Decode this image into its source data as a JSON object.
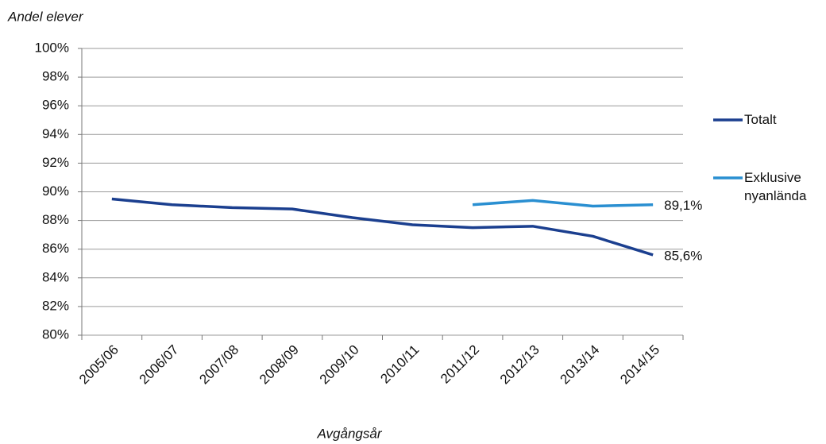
{
  "chart_data": {
    "type": "line",
    "y_axis_label": "Andel elever",
    "x_axis_label": "Avgångsår",
    "categories": [
      "2005/06",
      "2006/07",
      "2007/08",
      "2008/09",
      "2009/10",
      "2010/11",
      "2011/12",
      "2012/13",
      "2013/14",
      "2014/15"
    ],
    "series": [
      {
        "name": "Totalt",
        "color": "#1b3f8f",
        "values": [
          89.5,
          89.1,
          88.9,
          88.8,
          88.2,
          87.7,
          87.5,
          87.6,
          86.9,
          85.6
        ],
        "value_labels": [
          null,
          null,
          null,
          null,
          null,
          null,
          null,
          null,
          null,
          "85,6%"
        ]
      },
      {
        "name": "Exklusive nyanlända",
        "color": "#2a8fd1",
        "values": [
          null,
          null,
          null,
          null,
          null,
          null,
          89.1,
          89.4,
          89.0,
          89.1
        ],
        "value_labels": [
          null,
          null,
          null,
          null,
          null,
          null,
          null,
          null,
          null,
          "89,1%"
        ]
      }
    ],
    "ylim": [
      80,
      100
    ],
    "yticks": [
      {
        "value": 80,
        "label": "80%"
      },
      {
        "value": 82,
        "label": "82%"
      },
      {
        "value": 84,
        "label": "84%"
      },
      {
        "value": 86,
        "label": "86%"
      },
      {
        "value": 88,
        "label": "88%"
      },
      {
        "value": 90,
        "label": "90%"
      },
      {
        "value": 92,
        "label": "92%"
      },
      {
        "value": 94,
        "label": "94%"
      },
      {
        "value": 96,
        "label": "96%"
      },
      {
        "value": 98,
        "label": "98%"
      },
      {
        "value": 100,
        "label": "100%"
      }
    ],
    "grid": true,
    "legend": "right"
  }
}
